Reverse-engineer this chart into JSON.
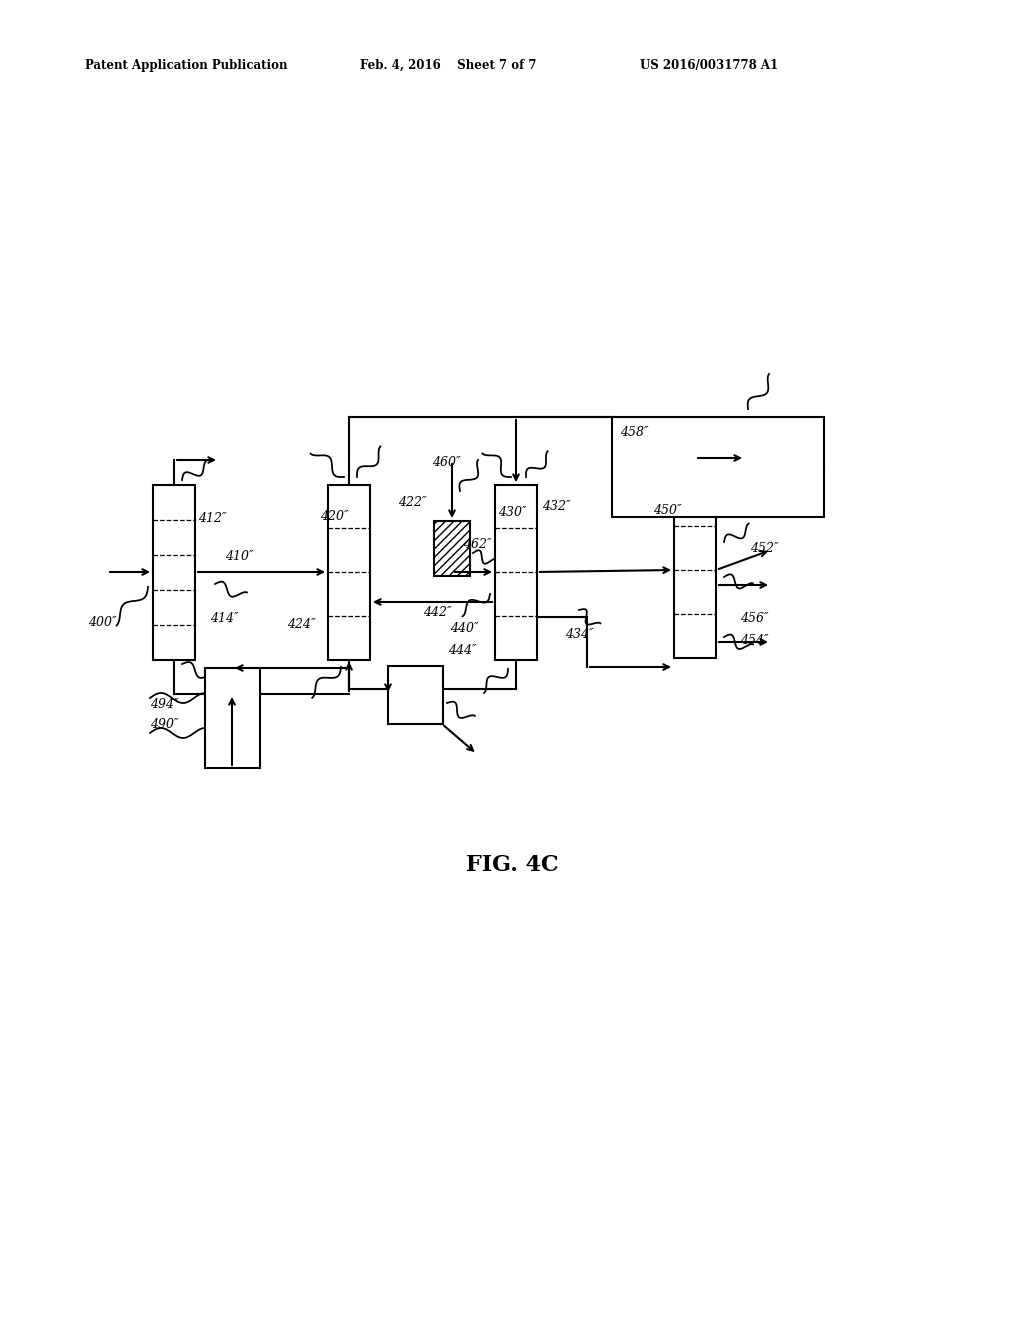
{
  "background": "#ffffff",
  "line_color": "#000000",
  "header_left": "Patent Application Publication",
  "header_mid": "Feb. 4, 2016  Sheet 7 of 7",
  "header_right": "US 2016/0031778 A1",
  "fig_label": "FIG. 4C"
}
